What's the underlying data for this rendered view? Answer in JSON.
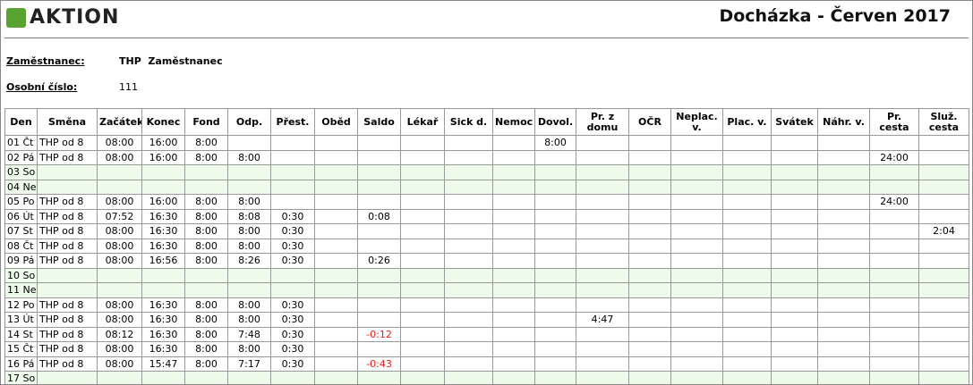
{
  "header": {
    "logo": "AKTION",
    "title": "Docházka - Červen 2017"
  },
  "employee": {
    "label": "Zaměstnanec:",
    "value": "THP  Zaměstnanec"
  },
  "personal_number": {
    "label": "Osobní číslo:",
    "value": "111"
  },
  "table": {
    "columns": [
      "Den",
      "Směna",
      "Začátek",
      "Konec",
      "Fond",
      "Odp.",
      "Přest.",
      "Oběd",
      "Saldo",
      "Lékař",
      "Sick d.",
      "Nemoc",
      "Dovol.",
      "Pr. z domu",
      "OČR",
      "Neplac. v.",
      "Plac. v.",
      "Svátek",
      "Náhr. v.",
      "Pr. cesta",
      "Služ. cesta"
    ],
    "rows": [
      [
        "01 Čt",
        "THP od 8",
        "08:00",
        "16:00",
        "8:00",
        null,
        null,
        null,
        null,
        null,
        null,
        null,
        "8:00",
        null,
        null,
        null,
        null,
        null,
        null,
        null,
        null
      ],
      [
        "02 Pá",
        "THP od 8",
        "08:00",
        "16:00",
        "8:00",
        "8:00",
        null,
        null,
        null,
        null,
        null,
        null,
        null,
        null,
        null,
        null,
        null,
        null,
        null,
        "24:00",
        null
      ],
      [
        "03 So",
        null,
        null,
        null,
        null,
        null,
        null,
        null,
        null,
        null,
        null,
        null,
        null,
        null,
        null,
        null,
        null,
        null,
        null,
        null,
        null
      ],
      [
        "04 Ne",
        null,
        null,
        null,
        null,
        null,
        null,
        null,
        null,
        null,
        null,
        null,
        null,
        null,
        null,
        null,
        null,
        null,
        null,
        null,
        null
      ],
      [
        "05 Po",
        "THP od 8",
        "08:00",
        "16:00",
        "8:00",
        "8:00",
        null,
        null,
        null,
        null,
        null,
        null,
        null,
        null,
        null,
        null,
        null,
        null,
        null,
        "24:00",
        null
      ],
      [
        "06 Út",
        "THP od 8",
        "07:52",
        "16:30",
        "8:00",
        "8:08",
        "0:30",
        null,
        "0:08",
        null,
        null,
        null,
        null,
        null,
        null,
        null,
        null,
        null,
        null,
        null,
        null
      ],
      [
        "07 St",
        "THP od 8",
        "08:00",
        "16:30",
        "8:00",
        "8:00",
        "0:30",
        null,
        null,
        null,
        null,
        null,
        null,
        null,
        null,
        null,
        null,
        null,
        null,
        null,
        "2:04"
      ],
      [
        "08 Čt",
        "THP od 8",
        "08:00",
        "16:30",
        "8:00",
        "8:00",
        "0:30",
        null,
        null,
        null,
        null,
        null,
        null,
        null,
        null,
        null,
        null,
        null,
        null,
        null,
        null
      ],
      [
        "09 Pá",
        "THP od 8",
        "08:00",
        "16:56",
        "8:00",
        "8:26",
        "0:30",
        null,
        "0:26",
        null,
        null,
        null,
        null,
        null,
        null,
        null,
        null,
        null,
        null,
        null,
        null
      ],
      [
        "10 So",
        null,
        null,
        null,
        null,
        null,
        null,
        null,
        null,
        null,
        null,
        null,
        null,
        null,
        null,
        null,
        null,
        null,
        null,
        null,
        null
      ],
      [
        "11 Ne",
        null,
        null,
        null,
        null,
        null,
        null,
        null,
        null,
        null,
        null,
        null,
        null,
        null,
        null,
        null,
        null,
        null,
        null,
        null,
        null
      ],
      [
        "12 Po",
        "THP od 8",
        "08:00",
        "16:30",
        "8:00",
        "8:00",
        "0:30",
        null,
        null,
        null,
        null,
        null,
        null,
        null,
        null,
        null,
        null,
        null,
        null,
        null,
        null
      ],
      [
        "13 Út",
        "THP od 8",
        "08:00",
        "16:30",
        "8:00",
        "8:00",
        "0:30",
        null,
        null,
        null,
        null,
        null,
        null,
        "4:47",
        null,
        null,
        null,
        null,
        null,
        null,
        null
      ],
      [
        "14 St",
        "THP od 8",
        "08:12",
        "16:30",
        "8:00",
        "7:48",
        "0:30",
        null,
        "-0:12",
        null,
        null,
        null,
        null,
        null,
        null,
        null,
        null,
        null,
        null,
        null,
        null
      ],
      [
        "15 Čt",
        "THP od 8",
        "08:00",
        "16:30",
        "8:00",
        "8:00",
        "0:30",
        null,
        null,
        null,
        null,
        null,
        null,
        null,
        null,
        null,
        null,
        null,
        null,
        null,
        null
      ],
      [
        "16 Pá",
        "THP od 8",
        "08:00",
        "15:47",
        "8:00",
        "7:17",
        "0:30",
        null,
        "-0:43",
        null,
        null,
        null,
        null,
        null,
        null,
        null,
        null,
        null,
        null,
        null,
        null
      ],
      [
        "17 So",
        null,
        null,
        null,
        null,
        null,
        null,
        null,
        null,
        null,
        null,
        null,
        null,
        null,
        null,
        null,
        null,
        null,
        null,
        null,
        null
      ]
    ]
  }
}
